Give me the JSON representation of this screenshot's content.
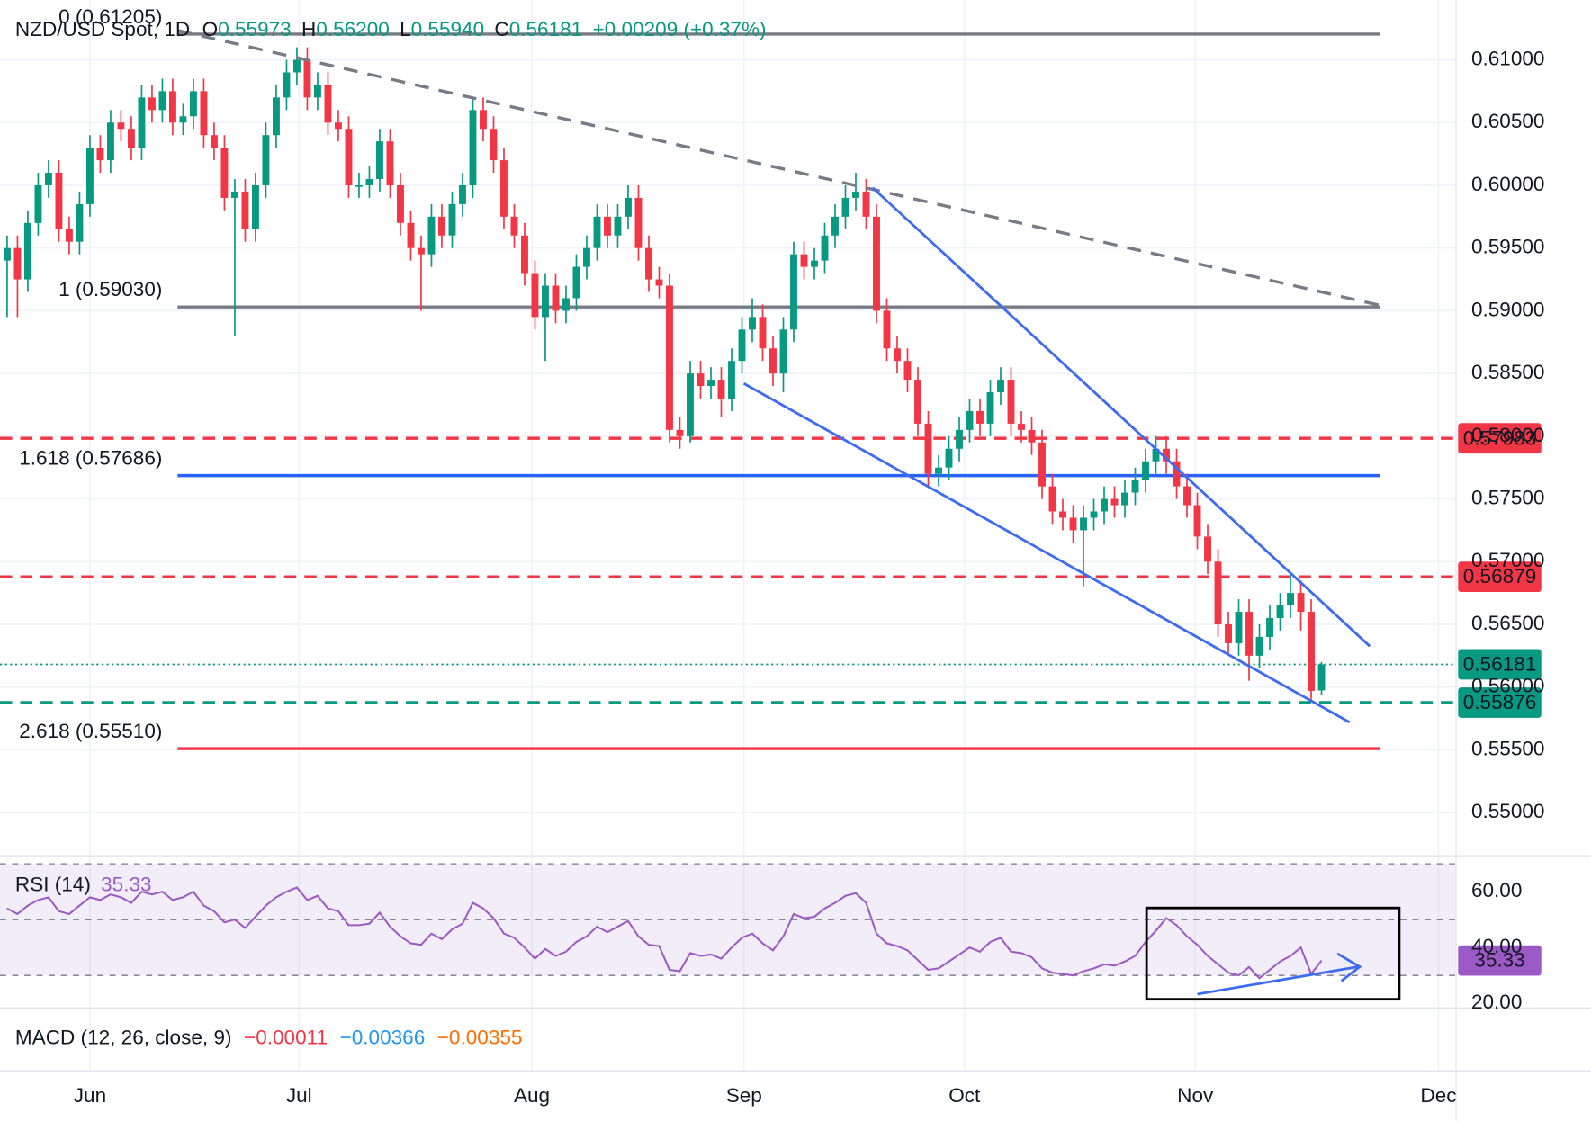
{
  "chart_data": {
    "type": "candlestick",
    "title": "NZD/USD Spot, 1D",
    "ohlc_legend": [
      {
        "label": "O",
        "value": "0.55973"
      },
      {
        "label": "H",
        "value": "0.56200"
      },
      {
        "label": "L",
        "value": "0.55940"
      },
      {
        "label": "C",
        "value": "0.56181"
      }
    ],
    "change": "+0.00209 (+0.37%)",
    "up_color": "#089981",
    "down_color": "#f23645",
    "grid": true,
    "xlim": [
      -0.69,
      140
    ],
    "xticks": [
      {
        "value": 8,
        "label": "Jun"
      },
      {
        "value": 28.2,
        "label": "Jul"
      },
      {
        "value": 50.7,
        "label": "Aug"
      },
      {
        "value": 71.2,
        "label": "Sep"
      },
      {
        "value": 92.5,
        "label": "Oct"
      },
      {
        "value": 114.8,
        "label": "Nov"
      },
      {
        "value": 138.3,
        "label": "Dec"
      }
    ],
    "ylim": [
      0.5466,
      0.61477
    ],
    "yticks": [
      {
        "value": 0.55,
        "label": "0.55000"
      },
      {
        "value": 0.555,
        "label": "0.55500"
      },
      {
        "value": 0.56,
        "label": "0.56000"
      },
      {
        "value": 0.565,
        "label": "0.56500"
      },
      {
        "value": 0.57,
        "label": "0.57000"
      },
      {
        "value": 0.575,
        "label": "0.57500"
      },
      {
        "value": 0.58,
        "label": "0.58000"
      },
      {
        "value": 0.585,
        "label": "0.58500"
      },
      {
        "value": 0.59,
        "label": "0.59000"
      },
      {
        "value": 0.595,
        "label": "0.59500"
      },
      {
        "value": 0.6,
        "label": "0.60000"
      },
      {
        "value": 0.605,
        "label": "0.60500"
      },
      {
        "value": 0.61,
        "label": "0.61000"
      }
    ],
    "open": [
      0.594,
      0.595,
      0.5925,
      0.597,
      0.6,
      0.601,
      0.5965,
      0.5955,
      0.5985,
      0.603,
      0.602,
      0.605,
      0.6045,
      0.603,
      0.607,
      0.606,
      0.6075,
      0.605,
      0.6055,
      0.6075,
      0.604,
      0.603,
      0.599,
      0.5995,
      0.5965,
      0.6,
      0.604,
      0.607,
      0.609,
      0.61,
      0.607,
      0.608,
      0.605,
      0.6045,
      0.6,
      0.6,
      0.6005,
      0.6035,
      0.6,
      0.597,
      0.595,
      0.5945,
      0.5975,
      0.596,
      0.5985,
      0.6,
      0.606,
      0.6045,
      0.602,
      0.5975,
      0.596,
      0.593,
      0.5895,
      0.592,
      0.59,
      0.591,
      0.5935,
      0.595,
      0.5975,
      0.596,
      0.5975,
      0.599,
      0.595,
      0.5925,
      0.592,
      0.5805,
      0.58,
      0.585,
      0.584,
      0.5845,
      0.583,
      0.586,
      0.5885,
      0.5895,
      0.587,
      0.585,
      0.5885,
      0.5945,
      0.5935,
      0.594,
      0.596,
      0.5975,
      0.599,
      0.5995,
      0.5975,
      0.59,
      0.587,
      0.586,
      0.5845,
      0.581,
      0.577,
      0.5775,
      0.579,
      0.5805,
      0.582,
      0.581,
      0.5835,
      0.5845,
      0.581,
      0.5805,
      0.5795,
      0.576,
      0.574,
      0.5735,
      0.5725,
      0.5735,
      0.574,
      0.575,
      0.5745,
      0.5755,
      0.5765,
      0.578,
      0.579,
      0.578,
      0.576,
      0.5745,
      0.572,
      0.57,
      0.565,
      0.5635,
      0.566,
      0.5625,
      0.564,
      0.5655,
      0.5665,
      0.5675,
      0.566,
      0.55973
    ],
    "high": [
      0.596,
      0.596,
      0.598,
      0.601,
      0.602,
      0.602,
      0.5975,
      0.5995,
      0.604,
      0.604,
      0.606,
      0.606,
      0.6055,
      0.608,
      0.608,
      0.6085,
      0.6085,
      0.6065,
      0.6085,
      0.6085,
      0.605,
      0.604,
      0.6005,
      0.6005,
      0.601,
      0.605,
      0.608,
      0.61,
      0.611,
      0.611,
      0.609,
      0.609,
      0.606,
      0.6055,
      0.601,
      0.6015,
      0.6045,
      0.6045,
      0.601,
      0.598,
      0.596,
      0.5985,
      0.5985,
      0.5995,
      0.601,
      0.607,
      0.607,
      0.6055,
      0.603,
      0.5985,
      0.597,
      0.594,
      0.593,
      0.593,
      0.592,
      0.5945,
      0.596,
      0.5985,
      0.5985,
      0.5985,
      0.6,
      0.6,
      0.596,
      0.5935,
      0.593,
      0.5815,
      0.586,
      0.586,
      0.5855,
      0.5855,
      0.587,
      0.5895,
      0.591,
      0.5905,
      0.588,
      0.5895,
      0.5955,
      0.5955,
      0.595,
      0.597,
      0.5985,
      0.6,
      0.601,
      0.6005,
      0.5985,
      0.591,
      0.588,
      0.587,
      0.5855,
      0.582,
      0.5785,
      0.58,
      0.5815,
      0.583,
      0.583,
      0.5845,
      0.5855,
      0.5855,
      0.582,
      0.5815,
      0.5805,
      0.577,
      0.575,
      0.5745,
      0.5745,
      0.575,
      0.576,
      0.576,
      0.5765,
      0.5775,
      0.579,
      0.58,
      0.58,
      0.579,
      0.577,
      0.5755,
      0.573,
      0.571,
      0.566,
      0.567,
      0.567,
      0.565,
      0.5665,
      0.5675,
      0.569,
      0.5685,
      0.567,
      0.562
    ],
    "low": [
      0.5895,
      0.5895,
      0.5915,
      0.596,
      0.599,
      0.5955,
      0.5945,
      0.5945,
      0.5975,
      0.601,
      0.601,
      0.6035,
      0.602,
      0.602,
      0.605,
      0.605,
      0.604,
      0.604,
      0.6045,
      0.603,
      0.602,
      0.598,
      0.588,
      0.5955,
      0.5955,
      0.599,
      0.603,
      0.606,
      0.608,
      0.606,
      0.606,
      0.604,
      0.6035,
      0.599,
      0.599,
      0.599,
      0.5995,
      0.599,
      0.596,
      0.594,
      0.59,
      0.5935,
      0.595,
      0.595,
      0.5975,
      0.599,
      0.6035,
      0.601,
      0.5965,
      0.595,
      0.592,
      0.5885,
      0.586,
      0.589,
      0.589,
      0.59,
      0.5925,
      0.594,
      0.595,
      0.595,
      0.5965,
      0.594,
      0.5915,
      0.591,
      0.5795,
      0.579,
      0.5795,
      0.583,
      0.583,
      0.5815,
      0.582,
      0.585,
      0.5875,
      0.586,
      0.584,
      0.5835,
      0.5875,
      0.5925,
      0.5925,
      0.593,
      0.595,
      0.5965,
      0.598,
      0.5965,
      0.589,
      0.586,
      0.585,
      0.5835,
      0.58,
      0.576,
      0.576,
      0.5765,
      0.578,
      0.5795,
      0.58,
      0.58,
      0.5825,
      0.58,
      0.5795,
      0.5785,
      0.575,
      0.573,
      0.5725,
      0.5715,
      0.568,
      0.5725,
      0.573,
      0.5735,
      0.5735,
      0.5745,
      0.5755,
      0.577,
      0.577,
      0.575,
      0.5735,
      0.571,
      0.569,
      0.564,
      0.5625,
      0.5625,
      0.5605,
      0.5615,
      0.563,
      0.5645,
      0.5655,
      0.5645,
      0.559,
      0.5594
    ],
    "close": [
      0.595,
      0.5925,
      0.597,
      0.6,
      0.601,
      0.5965,
      0.5955,
      0.5985,
      0.603,
      0.602,
      0.605,
      0.6045,
      0.603,
      0.607,
      0.606,
      0.6075,
      0.605,
      0.6055,
      0.6075,
      0.604,
      0.603,
      0.599,
      0.5995,
      0.5965,
      0.6,
      0.604,
      0.607,
      0.609,
      0.61,
      0.607,
      0.608,
      0.605,
      0.6045,
      0.6,
      0.6,
      0.6005,
      0.6035,
      0.6,
      0.597,
      0.595,
      0.5945,
      0.5975,
      0.596,
      0.5985,
      0.6,
      0.606,
      0.6045,
      0.602,
      0.5975,
      0.596,
      0.593,
      0.5895,
      0.592,
      0.59,
      0.591,
      0.5935,
      0.595,
      0.5975,
      0.596,
      0.5975,
      0.599,
      0.595,
      0.5925,
      0.592,
      0.5805,
      0.58,
      0.585,
      0.584,
      0.5845,
      0.583,
      0.586,
      0.5885,
      0.5895,
      0.587,
      0.585,
      0.5885,
      0.5945,
      0.5935,
      0.594,
      0.596,
      0.5975,
      0.599,
      0.5995,
      0.5975,
      0.59,
      0.587,
      0.586,
      0.5845,
      0.581,
      0.577,
      0.5775,
      0.579,
      0.5805,
      0.582,
      0.581,
      0.5835,
      0.5845,
      0.581,
      0.5805,
      0.5795,
      0.576,
      0.574,
      0.5735,
      0.5725,
      0.5735,
      0.574,
      0.575,
      0.5745,
      0.5755,
      0.5765,
      0.578,
      0.579,
      0.578,
      0.576,
      0.5745,
      0.572,
      0.57,
      0.565,
      0.5635,
      0.566,
      0.5625,
      0.564,
      0.5655,
      0.5665,
      0.5675,
      0.566,
      0.5597,
      0.56181
    ],
    "fib_levels": [
      {
        "value": 0.61205,
        "label": "0 (0.61205)",
        "color": "#787b86"
      },
      {
        "value": 0.5903,
        "label": "1 (0.59030)",
        "color": "#787b86"
      },
      {
        "value": 0.57686,
        "label": "1.618 (0.57686)",
        "color": "#2962ff"
      },
      {
        "value": 0.5551,
        "label": "2.618 (0.55510)",
        "color": "#f23645"
      }
    ],
    "price_lines": [
      {
        "value": 0.57983,
        "color": "#f23645",
        "style": "dashed"
      },
      {
        "value": 0.56879,
        "color": "#f23645",
        "style": "dashed"
      },
      {
        "value": 0.56181,
        "color": "#089981",
        "style": "dotted"
      },
      {
        "value": 0.55876,
        "color": "#089981",
        "style": "dashed"
      }
    ],
    "rsi": {
      "title": "RSI (14)",
      "color": "#9b59c6",
      "ylim": [
        18.55,
        72.36
      ],
      "yticks": [
        {
          "value": 20,
          "label": "20.00"
        },
        {
          "value": 40,
          "label": "40.00"
        },
        {
          "value": 60,
          "label": "60.00"
        }
      ],
      "levels": [
        70,
        50,
        30
      ],
      "values": [
        54,
        52,
        55,
        57,
        58,
        53,
        52,
        55,
        58,
        57,
        59,
        58,
        56,
        60,
        59,
        60,
        57,
        58,
        60,
        55,
        53,
        49,
        50,
        47,
        51,
        55,
        58,
        60,
        61.5,
        57,
        58.5,
        54,
        53,
        48,
        48,
        48.5,
        52.5,
        47.5,
        44,
        41.5,
        41,
        45,
        43,
        46.5,
        48.5,
        56,
        54,
        50.5,
        45,
        43.5,
        40,
        36,
        39.5,
        37,
        38.5,
        42,
        44,
        47.5,
        45.5,
        47.5,
        49.5,
        44,
        41,
        40.5,
        32,
        31.5,
        38,
        37,
        37.5,
        36,
        40,
        43.5,
        45,
        41.5,
        39,
        44,
        52,
        50.5,
        51,
        54,
        56,
        58.5,
        59.5,
        56,
        45,
        41.5,
        40.5,
        39,
        35.5,
        32,
        32.5,
        35,
        37.5,
        40,
        38.5,
        42,
        43.5,
        38.5,
        38,
        36.5,
        32.5,
        31,
        30.5,
        30,
        31.5,
        32.5,
        34,
        33.5,
        35,
        37,
        42,
        46,
        50.5,
        48,
        44,
        41,
        37,
        34,
        31,
        30,
        33,
        29,
        32,
        35,
        37,
        40,
        30.5,
        35.33
      ]
    },
    "macd": {
      "title": "MACD (12, 26, close, 9)",
      "values": [
        {
          "value": -0.00011,
          "label": "−0.00011",
          "color": "#f23645"
        },
        {
          "value": -0.00366,
          "label": "−0.00366",
          "color": "#2196f3"
        },
        {
          "value": -0.00355,
          "label": "−0.00355",
          "color": "#ff6d00"
        }
      ]
    }
  }
}
